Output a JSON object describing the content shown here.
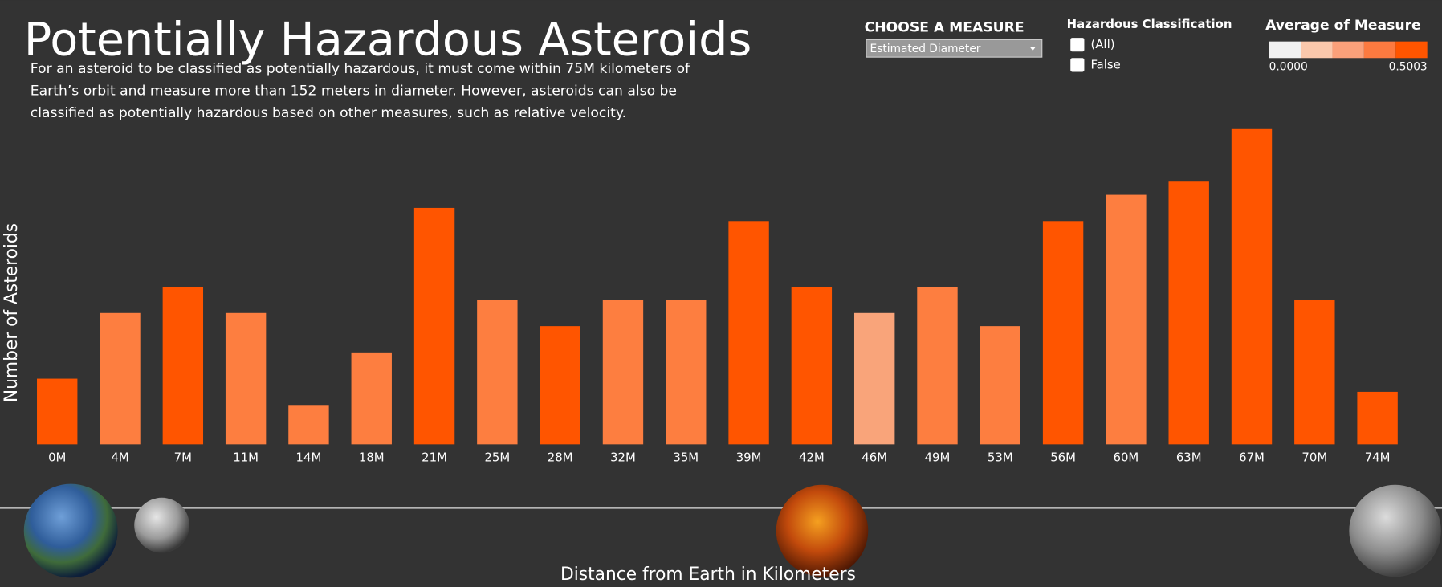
{
  "chart_data": {
    "type": "bar",
    "title": "Potentially Hazardous Asteroids",
    "description": [
      "For an asteroid to be classified as potentially hazardous, it must come within 75M kilometers of",
      "Earth’s orbit and measure more than 152 meters in diameter. However, asteroids can also be",
      "classified as potentially hazardous based on other measures, such as relative velocity."
    ],
    "x_label": "Distance from Earth in Kilometers",
    "y_label": "Number of Asteroids",
    "categories": [
      "0M",
      "4M",
      "7M",
      "11M",
      "14M",
      "18M",
      "21M",
      "25M",
      "28M",
      "32M",
      "35M",
      "39M",
      "42M",
      "46M",
      "49M",
      "53M",
      "56M",
      "60M",
      "63M",
      "67M",
      "70M",
      "74M"
    ],
    "values": [
      5,
      10,
      12,
      10,
      3,
      7,
      18,
      11,
      9,
      11,
      11,
      17,
      12,
      10,
      12,
      9,
      17,
      19,
      20,
      24,
      11,
      4
    ],
    "colors": [
      "#ff5500",
      "#fd7e40",
      "#ff5500",
      "#fd7e40",
      "#fd7e40",
      "#fd7e40",
      "#ff5500",
      "#fd7e40",
      "#ff5500",
      "#fd7e40",
      "#fd7e40",
      "#ff5500",
      "#ff5500",
      "#f9a47a",
      "#fd7e40",
      "#fd7e40",
      "#ff5500",
      "#fd7e40",
      "#ff5500",
      "#ff5500",
      "#ff5500",
      "#ff5500"
    ],
    "ylim": [
      0,
      25
    ],
    "grid": false,
    "color_scale": {
      "title": "Average of Measure",
      "colors": [
        "#f0f0f0",
        "#fbc8ac",
        "#fba07a",
        "#fd7a40",
        "#ff5500"
      ],
      "ticks": [
        {
          "value": 0,
          "label": "0.0000"
        },
        {
          "value": 0.5003,
          "label": "0.5003"
        }
      ]
    }
  },
  "controls": {
    "measure": {
      "title": "CHOOSE A MEASURE",
      "selected": "Estimated Diameter"
    },
    "filter": {
      "title": "Hazardous Classification",
      "options": [
        "(All)",
        "False"
      ]
    }
  }
}
